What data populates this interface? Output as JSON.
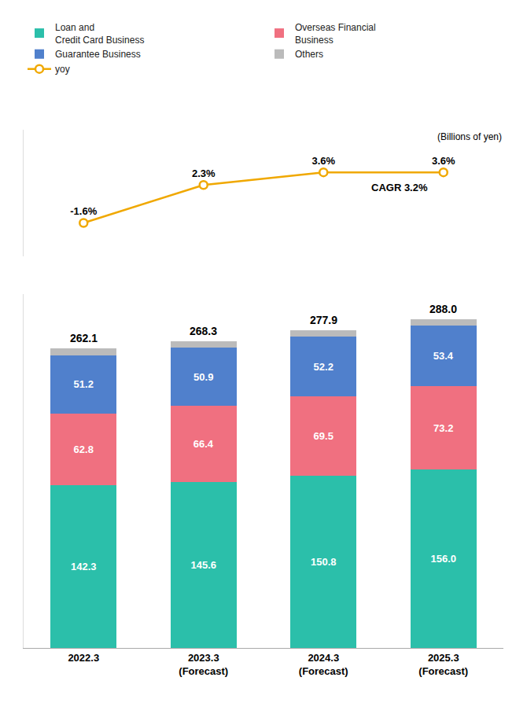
{
  "chart_data": {
    "type": "bar",
    "stacked": true,
    "categories": [
      "2022.3",
      "2023.3\n(Forecast)",
      "2024.3\n(Forecast)",
      "2025.3\n(Forecast)"
    ],
    "series": [
      {
        "name": "Loan and\nCredit Card Business",
        "color": "#2BBFAA",
        "values": [
          142.3,
          145.6,
          150.8,
          156.0
        ],
        "data_labels": true,
        "value_labels": [
          "142.3",
          "145.6",
          "150.8",
          "156.0"
        ]
      },
      {
        "name": "Overseas Financial\nBusiness",
        "color": "#F07080",
        "values": [
          62.8,
          66.4,
          69.5,
          73.2
        ],
        "data_labels": true,
        "value_labels": [
          "62.8",
          "66.4",
          "69.5",
          "73.2"
        ]
      },
      {
        "name": "Guarantee Business",
        "color": "#5080CC",
        "values": [
          51.2,
          50.9,
          52.2,
          53.4
        ],
        "data_labels": true,
        "value_labels": [
          "51.2",
          "50.9",
          "52.2",
          "53.4"
        ]
      },
      {
        "name": "Others",
        "color": "#BBBBBB",
        "values": [
          5.8,
          5.4,
          5.4,
          5.4
        ],
        "data_labels": false
      },
      {
        "name": "yoy",
        "type": "line",
        "axis": "y2",
        "color": "#F0A800",
        "marker": "circle",
        "values": [
          -1.6,
          2.3,
          3.6,
          3.6
        ],
        "data_labels": true,
        "value_labels": [
          "-1.6%",
          "2.3%",
          "3.6%",
          "3.6%"
        ]
      }
    ],
    "totals": [
      262.1,
      268.3,
      277.9,
      288.0
    ],
    "total_labels": [
      "262.1",
      "268.3",
      "277.9",
      "288.0"
    ],
    "ylim": [
      0,
      310
    ],
    "y2lim": [
      -5,
      8
    ],
    "tick_labels": "x",
    "grid": false,
    "legend": "top",
    "annotations": [
      "CAGR 3.2%",
      "(Billions of yen)"
    ]
  }
}
